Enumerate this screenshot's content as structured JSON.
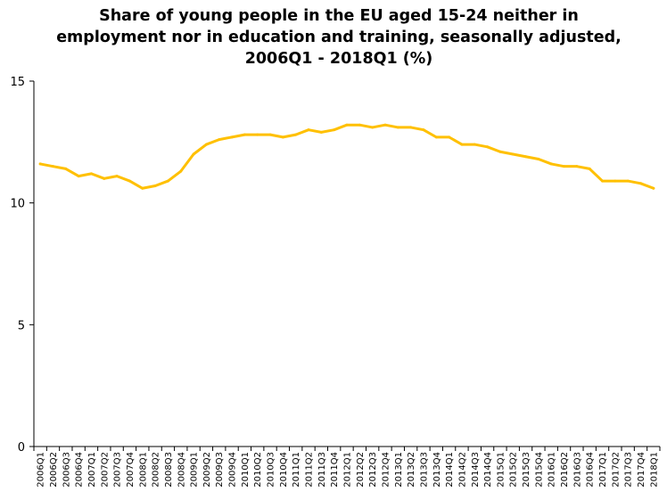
{
  "chart_data": {
    "type": "line",
    "title": "Share of young people in the EU aged 15-24 neither in employment nor in education and training, seasonally adjusted, 2006Q1 - 2018Q1 (%)",
    "xlabel": "",
    "ylabel": "",
    "ylim": [
      0,
      15
    ],
    "yticks": [
      "0",
      "5",
      "10",
      "15"
    ],
    "grid": false,
    "legend": "none",
    "line_color": "#FFC000",
    "categories": [
      "2006Q1",
      "2006Q2",
      "2006Q3",
      "2006Q4",
      "2007Q1",
      "2007Q2",
      "2007Q3",
      "2007Q4",
      "2008Q1",
      "2008Q2",
      "2008Q3",
      "2008Q4",
      "2009Q1",
      "2009Q2",
      "2009Q3",
      "2009Q4",
      "2010Q1",
      "2010Q2",
      "2010Q3",
      "2010Q4",
      "2011Q1",
      "2011Q2",
      "2011Q3",
      "2011Q4",
      "2012Q1",
      "2012Q2",
      "2012Q3",
      "2012Q4",
      "2013Q1",
      "2013Q2",
      "2013Q3",
      "2013Q4",
      "2014Q1",
      "2014Q2",
      "2014Q3",
      "2014Q4",
      "2015Q1",
      "2015Q2",
      "2015Q3",
      "2015Q4",
      "2016Q1",
      "2016Q2",
      "2016Q3",
      "2016Q4",
      "2017Q1",
      "2017Q2",
      "2017Q3",
      "2017Q4",
      "2018Q1"
    ],
    "values": [
      11.6,
      11.5,
      11.4,
      11.1,
      11.2,
      11.0,
      11.1,
      10.9,
      10.6,
      10.7,
      10.9,
      11.3,
      12.0,
      12.4,
      12.6,
      12.7,
      12.8,
      12.8,
      12.8,
      12.7,
      12.8,
      13.0,
      12.9,
      13.0,
      13.2,
      13.2,
      13.1,
      13.2,
      13.1,
      13.1,
      13.0,
      12.7,
      12.7,
      12.4,
      12.4,
      12.3,
      12.1,
      12.0,
      11.9,
      11.8,
      11.6,
      11.5,
      11.5,
      11.4,
      10.9,
      10.9,
      10.9,
      10.8,
      10.6
    ]
  }
}
